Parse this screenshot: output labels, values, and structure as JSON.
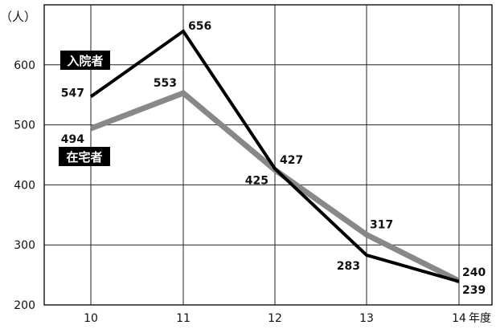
{
  "chart_data": {
    "type": "line",
    "y_unit_label": "（人）",
    "x_unit_label": "年度",
    "x": [
      "10",
      "11",
      "12",
      "13",
      "14"
    ],
    "ylim": [
      200,
      700
    ],
    "yticks": [
      "200",
      "300",
      "400",
      "500",
      "600"
    ],
    "grid": true,
    "series": [
      {
        "name": "入院者",
        "values": [
          547,
          656,
          427,
          283,
          239
        ],
        "color": "#000000"
      },
      {
        "name": "在宅者",
        "values": [
          494,
          553,
          425,
          317,
          240
        ],
        "color": "#888888"
      }
    ],
    "legend": "inline"
  }
}
